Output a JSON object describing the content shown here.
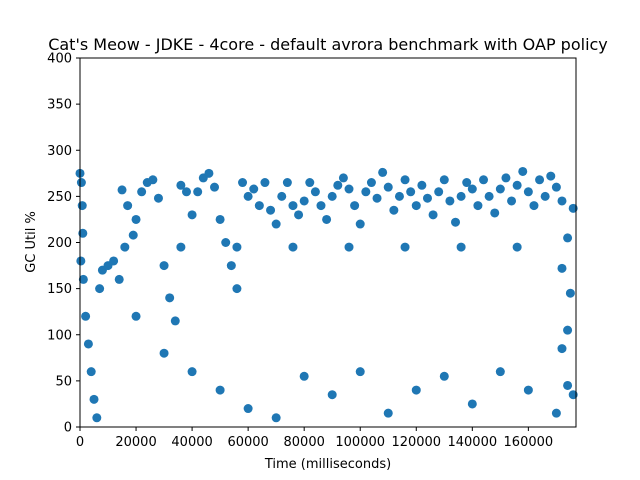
{
  "chart_data": {
    "type": "scatter",
    "title": "Cat's Meow - JDKE - 4core -  default avrora benchmark with OAP policy",
    "xlabel": "Time (milliseconds)",
    "ylabel": "GC Util %",
    "xlim": [
      0,
      177000
    ],
    "ylim": [
      0,
      400
    ],
    "x_ticks": [
      0,
      20000,
      40000,
      60000,
      80000,
      100000,
      120000,
      140000,
      160000
    ],
    "x_tick_labels": [
      "0",
      "20000",
      "40000",
      "60000",
      "80000",
      "100000",
      "120000",
      "140000",
      "160000"
    ],
    "y_ticks": [
      0,
      50,
      100,
      150,
      200,
      250,
      300,
      350,
      400
    ],
    "y_tick_labels": [
      "0",
      "50",
      "100",
      "150",
      "200",
      "250",
      "300",
      "350",
      "400"
    ],
    "grid": false,
    "marker_color": "#1f77b4",
    "series": [
      {
        "values": [
          {
            "x": 0,
            "y": 275
          },
          {
            "x": 500,
            "y": 265
          },
          {
            "x": 800,
            "y": 240
          },
          {
            "x": 1000,
            "y": 210
          },
          {
            "x": 300,
            "y": 180
          },
          {
            "x": 1200,
            "y": 160
          },
          {
            "x": 2000,
            "y": 120
          },
          {
            "x": 3000,
            "y": 90
          },
          {
            "x": 4000,
            "y": 60
          },
          {
            "x": 5000,
            "y": 30
          },
          {
            "x": 6000,
            "y": 10
          },
          {
            "x": 7000,
            "y": 150
          },
          {
            "x": 8000,
            "y": 170
          },
          {
            "x": 10000,
            "y": 175
          },
          {
            "x": 12000,
            "y": 180
          },
          {
            "x": 14000,
            "y": 160
          },
          {
            "x": 15000,
            "y": 257
          },
          {
            "x": 17000,
            "y": 240
          },
          {
            "x": 19000,
            "y": 208
          },
          {
            "x": 20000,
            "y": 225
          },
          {
            "x": 22000,
            "y": 255
          },
          {
            "x": 24000,
            "y": 265
          },
          {
            "x": 26000,
            "y": 268
          },
          {
            "x": 28000,
            "y": 248
          },
          {
            "x": 30000,
            "y": 175
          },
          {
            "x": 32000,
            "y": 140
          },
          {
            "x": 34000,
            "y": 115
          },
          {
            "x": 36000,
            "y": 262
          },
          {
            "x": 38000,
            "y": 255
          },
          {
            "x": 40000,
            "y": 230
          },
          {
            "x": 42000,
            "y": 255
          },
          {
            "x": 44000,
            "y": 270
          },
          {
            "x": 46000,
            "y": 275
          },
          {
            "x": 48000,
            "y": 260
          },
          {
            "x": 50000,
            "y": 225
          },
          {
            "x": 52000,
            "y": 200
          },
          {
            "x": 54000,
            "y": 175
          },
          {
            "x": 56000,
            "y": 150
          },
          {
            "x": 58000,
            "y": 265
          },
          {
            "x": 60000,
            "y": 250
          },
          {
            "x": 62000,
            "y": 258
          },
          {
            "x": 64000,
            "y": 240
          },
          {
            "x": 66000,
            "y": 265
          },
          {
            "x": 68000,
            "y": 235
          },
          {
            "x": 70000,
            "y": 220
          },
          {
            "x": 72000,
            "y": 250
          },
          {
            "x": 74000,
            "y": 265
          },
          {
            "x": 76000,
            "y": 240
          },
          {
            "x": 78000,
            "y": 230
          },
          {
            "x": 80000,
            "y": 245
          },
          {
            "x": 82000,
            "y": 265
          },
          {
            "x": 84000,
            "y": 255
          },
          {
            "x": 86000,
            "y": 240
          },
          {
            "x": 88000,
            "y": 225
          },
          {
            "x": 90000,
            "y": 250
          },
          {
            "x": 92000,
            "y": 262
          },
          {
            "x": 94000,
            "y": 270
          },
          {
            "x": 96000,
            "y": 258
          },
          {
            "x": 98000,
            "y": 240
          },
          {
            "x": 100000,
            "y": 220
          },
          {
            "x": 102000,
            "y": 255
          },
          {
            "x": 104000,
            "y": 265
          },
          {
            "x": 106000,
            "y": 248
          },
          {
            "x": 108000,
            "y": 276
          },
          {
            "x": 110000,
            "y": 260
          },
          {
            "x": 112000,
            "y": 235
          },
          {
            "x": 114000,
            "y": 250
          },
          {
            "x": 116000,
            "y": 268
          },
          {
            "x": 118000,
            "y": 255
          },
          {
            "x": 120000,
            "y": 240
          },
          {
            "x": 122000,
            "y": 262
          },
          {
            "x": 124000,
            "y": 248
          },
          {
            "x": 126000,
            "y": 230
          },
          {
            "x": 128000,
            "y": 255
          },
          {
            "x": 130000,
            "y": 268
          },
          {
            "x": 132000,
            "y": 245
          },
          {
            "x": 134000,
            "y": 222
          },
          {
            "x": 136000,
            "y": 250
          },
          {
            "x": 138000,
            "y": 265
          },
          {
            "x": 140000,
            "y": 258
          },
          {
            "x": 142000,
            "y": 240
          },
          {
            "x": 144000,
            "y": 268
          },
          {
            "x": 146000,
            "y": 250
          },
          {
            "x": 148000,
            "y": 232
          },
          {
            "x": 150000,
            "y": 258
          },
          {
            "x": 152000,
            "y": 270
          },
          {
            "x": 154000,
            "y": 245
          },
          {
            "x": 156000,
            "y": 262
          },
          {
            "x": 158000,
            "y": 277
          },
          {
            "x": 160000,
            "y": 255
          },
          {
            "x": 162000,
            "y": 240
          },
          {
            "x": 164000,
            "y": 268
          },
          {
            "x": 166000,
            "y": 250
          },
          {
            "x": 168000,
            "y": 272
          },
          {
            "x": 170000,
            "y": 260
          },
          {
            "x": 172000,
            "y": 245
          },
          {
            "x": 174000,
            "y": 205
          },
          {
            "x": 176000,
            "y": 237
          },
          {
            "x": 16000,
            "y": 195
          },
          {
            "x": 36000,
            "y": 195
          },
          {
            "x": 56000,
            "y": 195
          },
          {
            "x": 76000,
            "y": 195
          },
          {
            "x": 96000,
            "y": 195
          },
          {
            "x": 116000,
            "y": 195
          },
          {
            "x": 136000,
            "y": 195
          },
          {
            "x": 156000,
            "y": 195
          },
          {
            "x": 172000,
            "y": 172
          },
          {
            "x": 175000,
            "y": 145
          },
          {
            "x": 174000,
            "y": 105
          },
          {
            "x": 172000,
            "y": 85
          },
          {
            "x": 174000,
            "y": 45
          },
          {
            "x": 176000,
            "y": 35
          },
          {
            "x": 20000,
            "y": 120
          },
          {
            "x": 30000,
            "y": 80
          },
          {
            "x": 40000,
            "y": 60
          },
          {
            "x": 50000,
            "y": 40
          },
          {
            "x": 60000,
            "y": 20
          },
          {
            "x": 70000,
            "y": 10
          },
          {
            "x": 80000,
            "y": 55
          },
          {
            "x": 90000,
            "y": 35
          },
          {
            "x": 100000,
            "y": 60
          },
          {
            "x": 110000,
            "y": 15
          },
          {
            "x": 120000,
            "y": 40
          },
          {
            "x": 130000,
            "y": 55
          },
          {
            "x": 140000,
            "y": 25
          },
          {
            "x": 150000,
            "y": 60
          },
          {
            "x": 160000,
            "y": 40
          },
          {
            "x": 170000,
            "y": 15
          }
        ]
      }
    ]
  }
}
